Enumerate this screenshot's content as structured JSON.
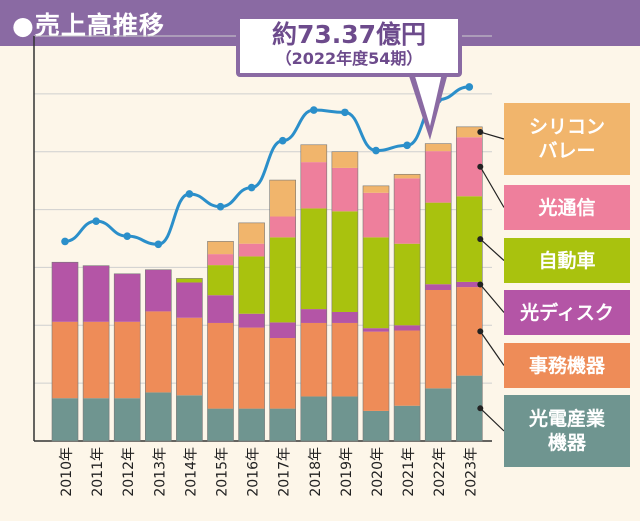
{
  "header": {
    "title": "●売上高推移"
  },
  "callout": {
    "main": "約73.37億円",
    "sub": "（2022年度54期）"
  },
  "chart_data": {
    "type": "bar",
    "stacked": true,
    "categories": [
      "2010年",
      "2011年",
      "2012年",
      "2013年",
      "2014年",
      "2015年",
      "2016年",
      "2017年",
      "2018年",
      "2019年",
      "2020年",
      "2021年",
      "2022年",
      "2023年"
    ],
    "series": [
      {
        "name": "光電産業機器",
        "color": "#6f9590",
        "values": [
          7.4,
          7.4,
          7.4,
          8.4,
          7.9,
          5.6,
          5.6,
          5.6,
          7.7,
          7.7,
          5.2,
          6.1,
          9.1,
          11.3
        ]
      },
      {
        "name": "事務機器",
        "color": "#ee8c58",
        "values": [
          13.2,
          13.2,
          13.2,
          14.0,
          13.4,
          14.8,
          14.0,
          12.2,
          12.7,
          12.7,
          13.7,
          13.0,
          17.0,
          15.3
        ]
      },
      {
        "name": "光ディスク",
        "color": "#b455a6",
        "values": [
          10.3,
          9.7,
          8.3,
          7.2,
          6.1,
          4.8,
          2.4,
          2.7,
          2.4,
          1.9,
          0.6,
          0.9,
          1.0,
          0.9
        ]
      },
      {
        "name": "自動車",
        "color": "#a9c20e",
        "values": [
          0,
          0,
          0,
          0,
          0.7,
          5.2,
          9.9,
          14.7,
          17.4,
          17.4,
          15.7,
          14.1,
          14.1,
          14.8
        ]
      },
      {
        "name": "光通信",
        "color": "#ee7f9c",
        "values": [
          0,
          0,
          0,
          0,
          0,
          1.9,
          2.2,
          3.6,
          8.0,
          7.5,
          7.7,
          11.3,
          8.9,
          10.2
        ]
      },
      {
        "name": "シリコンバレー",
        "color": "#f1b56c",
        "values": [
          0,
          0,
          0,
          0,
          0,
          2.2,
          3.6,
          6.3,
          3.0,
          2.8,
          1.2,
          0.7,
          1.3,
          1.8
        ]
      }
    ],
    "line": {
      "color": "#2b8fca",
      "values": [
        34.5,
        38.0,
        35.4,
        34.0,
        42.7,
        40.5,
        43.8,
        51.9,
        57.2,
        56.8,
        50.2,
        51.1,
        59.0,
        61.2
      ]
    },
    "ylim": [
      0,
      70
    ],
    "grid": "horizontal",
    "legend_position": "right",
    "legend": [
      "シリコン\nバレー",
      "光通信",
      "自動車",
      "光ディスク",
      "事務機器",
      "光電産業\n機器"
    ]
  }
}
